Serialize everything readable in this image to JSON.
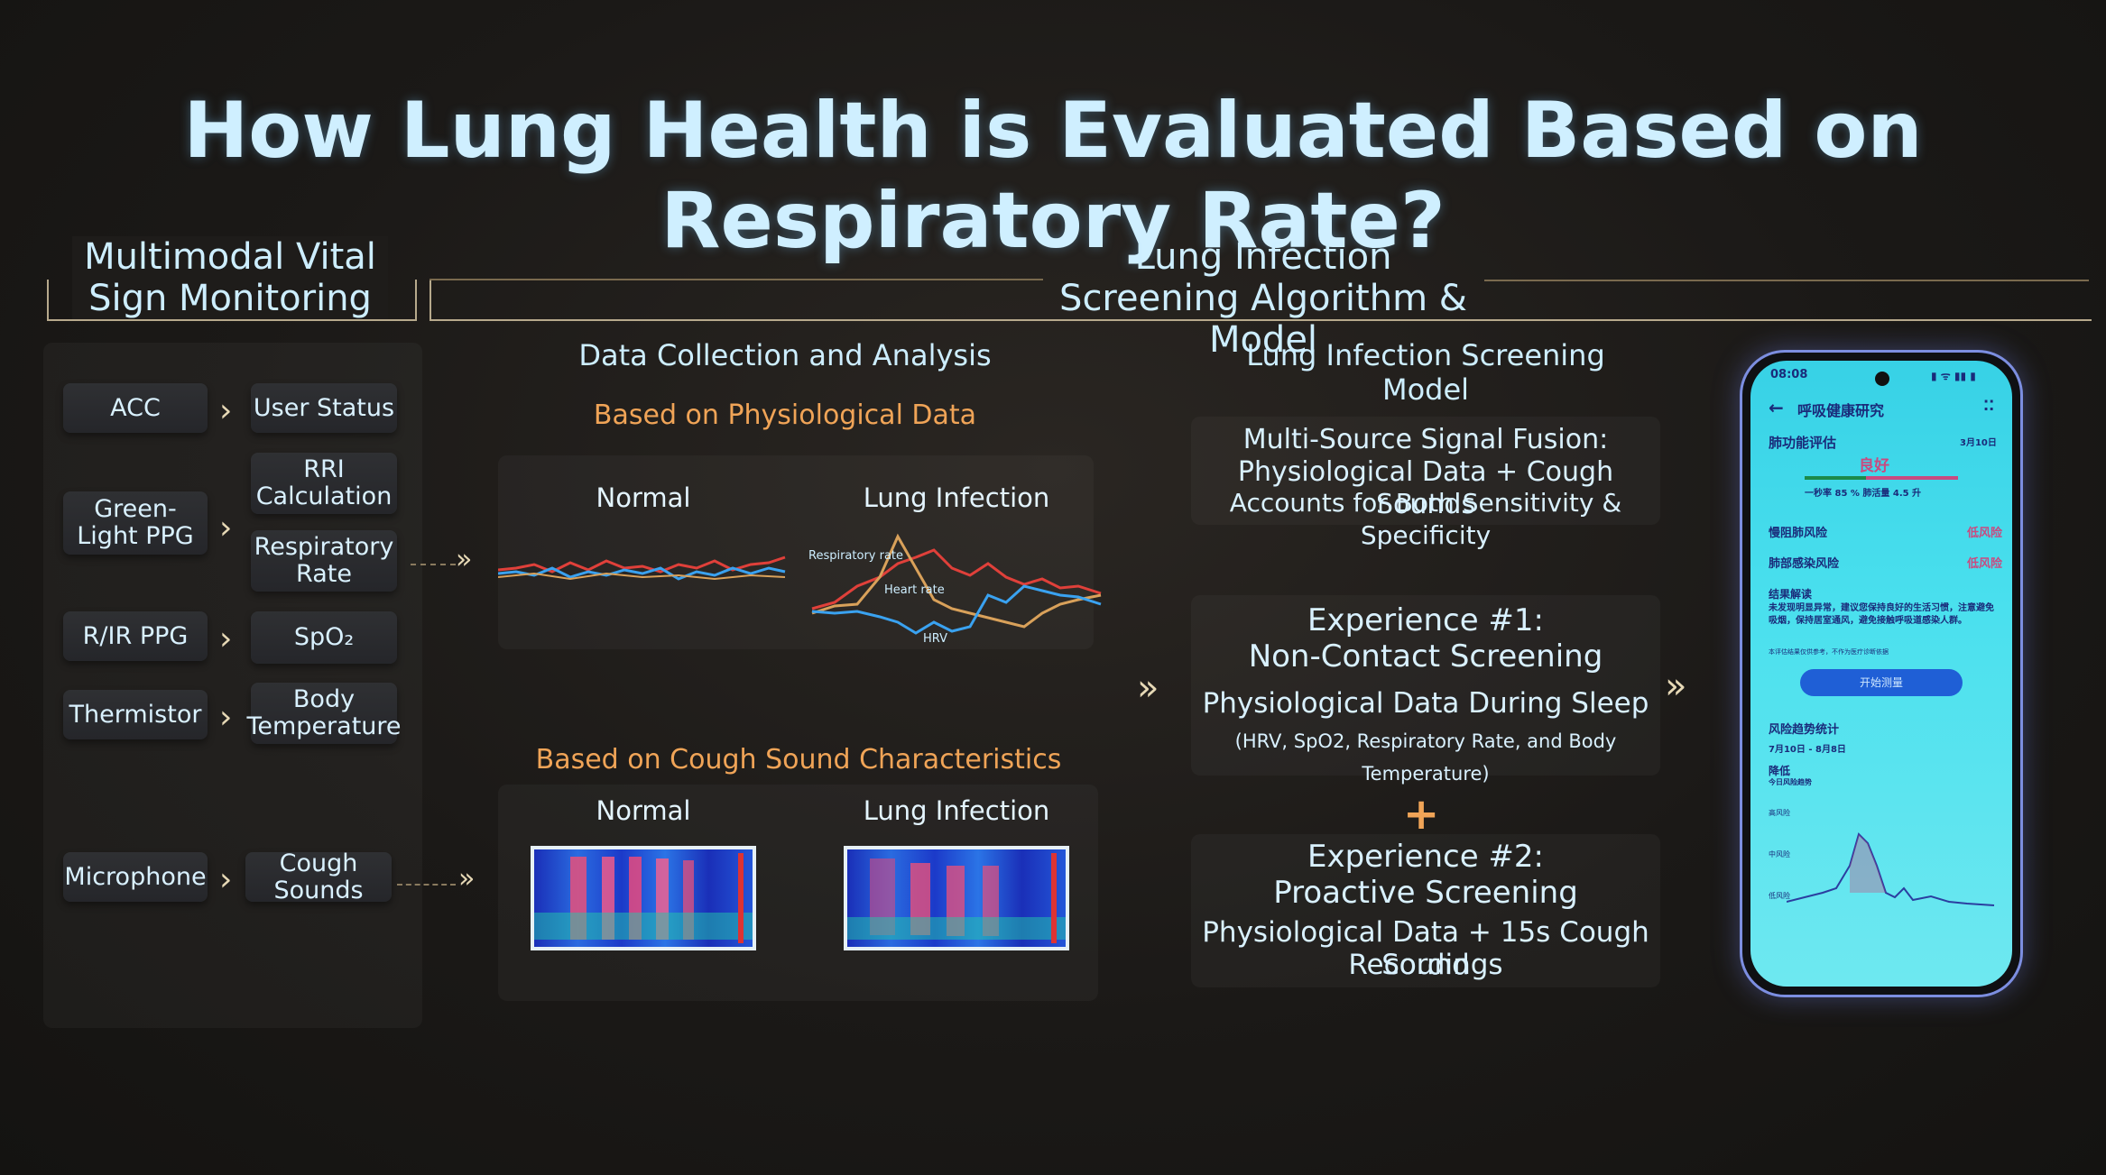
{
  "slide": {
    "title": "How Lung Health is Evaluated Based on Respiratory Rate?",
    "left_header": "Multimodal Vital Sign Monitoring",
    "right_header": "Lung Infection Screening Algorithm & Model"
  },
  "sensors": [
    {
      "name": "ACC",
      "outputs": [
        "User Status"
      ]
    },
    {
      "name": "Green-Light PPG",
      "outputs": [
        "RRI Calculation",
        "Respiratory Rate"
      ]
    },
    {
      "name": "R/IR PPG",
      "outputs": [
        "SpO₂"
      ]
    },
    {
      "name": "Thermistor",
      "outputs": [
        "Body Temperature"
      ]
    },
    {
      "name": "Microphone",
      "outputs": [
        "Cough Sounds"
      ]
    }
  ],
  "analysis": {
    "heading": "Data Collection and Analysis",
    "physio_heading": "Based on Physiological Data",
    "normal_label": "Normal",
    "infection_label": "Lung Infection",
    "trace_labels": [
      "Respiratory rate",
      "Heart rate",
      "HRV"
    ],
    "cough_heading": "Based on Cough Sound Characteristics",
    "cough_normal_label": "Normal",
    "cough_infection_label": "Lung Infection"
  },
  "model": {
    "heading": "Lung Infection Screening Model",
    "fusion": [
      "Multi-Source Signal Fusion:",
      "Physiological Data + Cough Sounds",
      "Accounts for Both Sensitivity & Specificity"
    ],
    "exp1_title": [
      "Experience #1:",
      "Non-Contact Screening"
    ],
    "exp1_desc": "Physiological Data During Sleep",
    "exp1_detail": "(HRV, SpO2, Respiratory Rate, and Body Temperature)",
    "plus": "+",
    "exp2_title": [
      "Experience #2:",
      "Proactive Screening"
    ],
    "exp2_desc": [
      "Physiological Data + 15s Cough Sound",
      "Recordings"
    ]
  },
  "phone": {
    "time": "08:08",
    "status_icons": "▮ ᯤ ▮▮ ▮",
    "app_title": "呼吸健康研究",
    "section1": "肺功能评估",
    "section1_date": "3月10日",
    "status": "良好",
    "metrics": "一秒率 85 %   肺活量 4.5 升",
    "row1_label": "慢阻肺风险",
    "row1_value": "低风险",
    "row2_label": "肺部感染风险",
    "row2_value": "低风险",
    "advice_title": "结果解读",
    "advice_text": "未发现明显异常，建议您保持良好的生活习惯，注意避免吸烟，保持居室通风，避免接触呼吸道感染人群。",
    "advice_note": "本评估结果仅供参考，不作为医疗诊断依据",
    "button": "开始测量",
    "trend_title": "风险趋势统计",
    "trend_range": "7月10日 - 8月8日",
    "trend_level": "降低",
    "trend_sub": "今日风险趋势",
    "axis": [
      "高风险",
      "中风险",
      "低风险"
    ]
  },
  "colors": {
    "title": "#cfefff",
    "accent_orange": "#f0a457",
    "resp_red": "#e0403a",
    "hr_orange": "#d9a15a",
    "hrv_blue": "#3aa2f0",
    "phone_screen": "#4ae0ee",
    "phone_button": "#1f5fd6"
  }
}
